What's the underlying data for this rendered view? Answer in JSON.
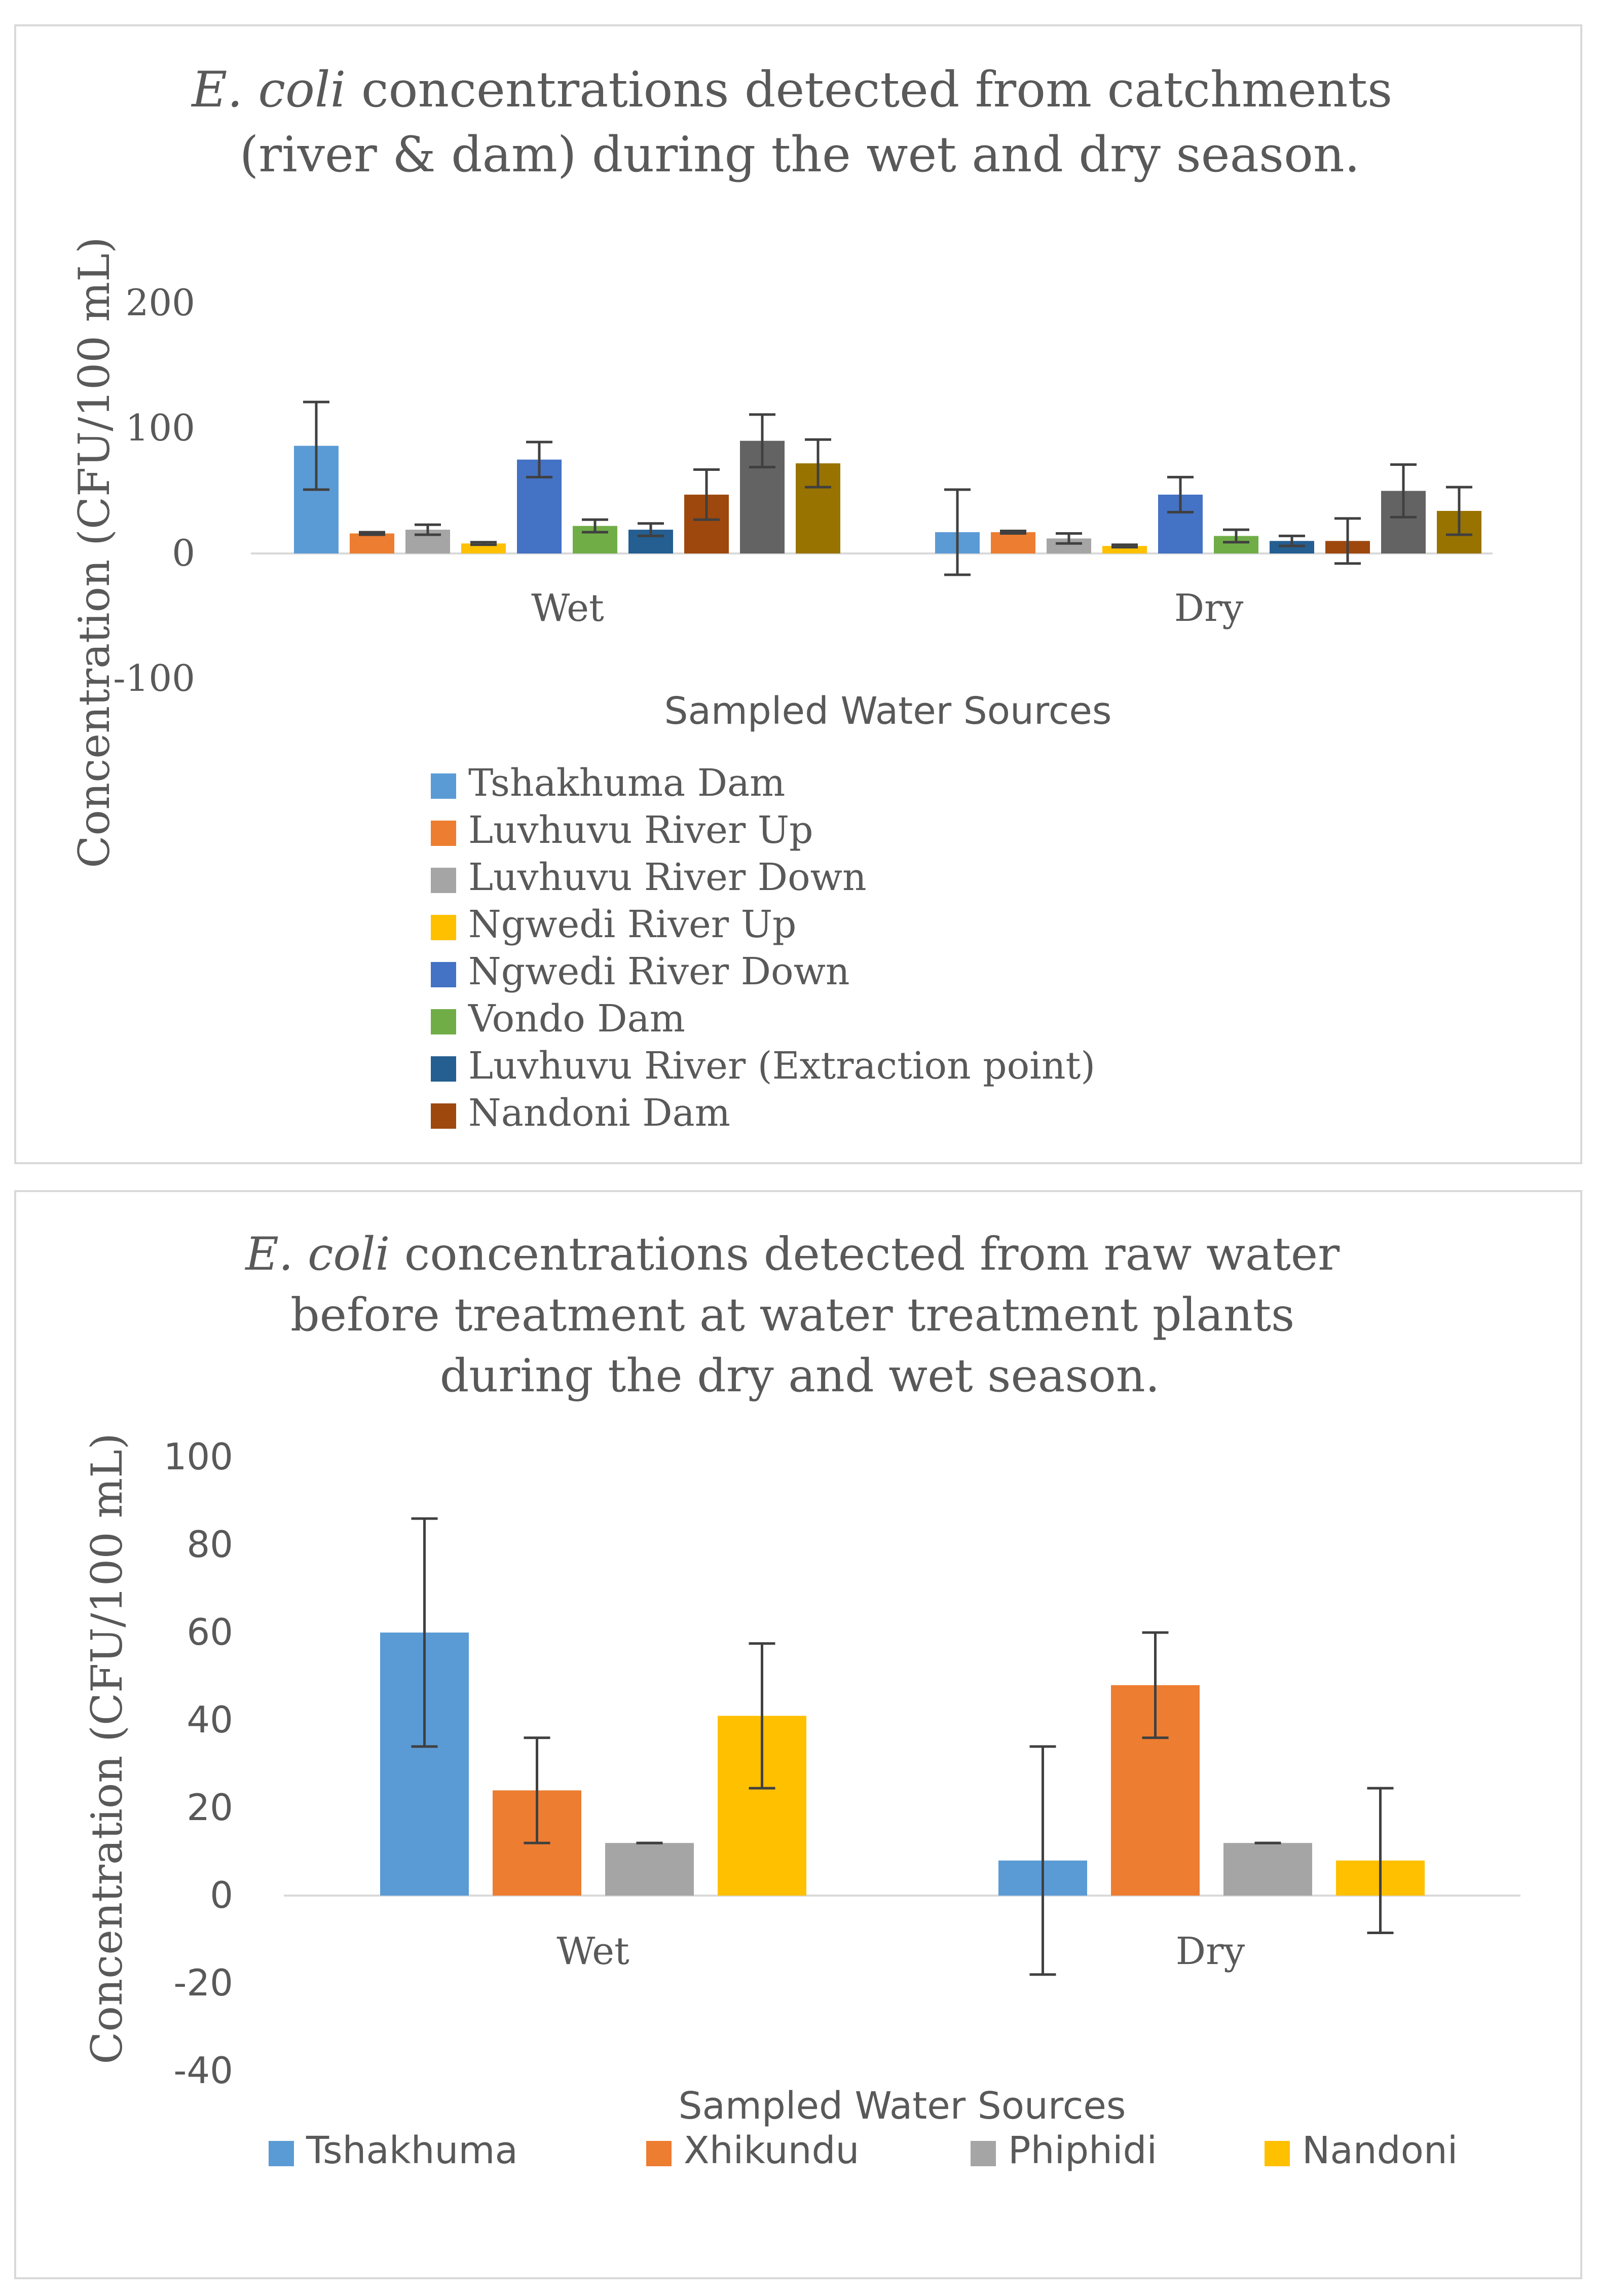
{
  "chart_data": [
    {
      "type": "bar",
      "title_italic": "E. coli",
      "title_lines": [
        " concentrations detected from catchments",
        "(river & dam) during the wet and dry season."
      ],
      "xlabel": "Sampled Water Sources",
      "ylabel": "Concentration (CFU/100 mL)",
      "categories": [
        "Wet",
        "Dry"
      ],
      "ylim": [
        -100,
        200
      ],
      "yticks": [
        200,
        100,
        0,
        -100
      ],
      "grid": false,
      "legend": "bottom",
      "series": [
        {
          "name": "Tshakhuma Dam",
          "color": "#5B9BD5",
          "values": [
            86,
            17
          ],
          "errors": [
            35,
            34
          ]
        },
        {
          "name": "Luvhuvu River Up",
          "color": "#ED7D31",
          "values": [
            16,
            17
          ],
          "errors": [
            1,
            1
          ]
        },
        {
          "name": "Luvhuvu River Down",
          "color": "#A5A5A5",
          "values": [
            19,
            12
          ],
          "errors": [
            4,
            4
          ]
        },
        {
          "name": "Ngwedi River Up",
          "color": "#FFC000",
          "values": [
            8,
            6
          ],
          "errors": [
            1,
            1
          ]
        },
        {
          "name": "Ngwedi River Down",
          "color": "#4472C4",
          "values": [
            75,
            47
          ],
          "errors": [
            14,
            14
          ]
        },
        {
          "name": "Vondo Dam",
          "color": "#70AD47",
          "values": [
            22,
            14
          ],
          "errors": [
            5,
            5
          ]
        },
        {
          "name": "Luvhuvu River (Extraction point)",
          "color": "#255E91",
          "values": [
            19,
            10
          ],
          "errors": [
            5,
            4
          ]
        },
        {
          "name": "Nandoni Dam",
          "color": "#9E480E",
          "values": [
            47,
            10
          ],
          "errors": [
            20,
            18
          ]
        },
        {
          "name": "",
          "color": "#636363",
          "values": [
            90,
            50
          ],
          "errors": [
            21,
            21
          ]
        },
        {
          "name": "",
          "color": "#997300",
          "values": [
            72,
            34
          ],
          "errors": [
            19,
            19
          ]
        }
      ]
    },
    {
      "type": "bar",
      "title_italic": "E. coli",
      "title_lines": [
        " concentrations detected from raw water",
        "before treatment at water treatment plants",
        "during the dry and wet season."
      ],
      "xlabel": "Sampled Water Sources",
      "ylabel": "Concentration (CFU/100 mL)",
      "categories": [
        "Wet",
        "Dry"
      ],
      "ylim": [
        -40,
        100
      ],
      "yticks": [
        100,
        80,
        60,
        40,
        20,
        0,
        -20,
        -40
      ],
      "grid": false,
      "legend": "bottom",
      "series": [
        {
          "name": "Tshakhuma",
          "color": "#5B9BD5",
          "values": [
            60,
            8
          ],
          "errors": [
            26,
            26
          ]
        },
        {
          "name": "Xhikundu",
          "color": "#ED7D31",
          "values": [
            24,
            48
          ],
          "errors": [
            12,
            12
          ]
        },
        {
          "name": "Phiphidi",
          "color": "#A5A5A5",
          "values": [
            12,
            12
          ],
          "errors": [
            0,
            0
          ]
        },
        {
          "name": "Nandoni",
          "color": "#FFC000",
          "values": [
            41,
            8
          ],
          "errors": [
            16.5,
            16.5
          ]
        }
      ]
    }
  ]
}
